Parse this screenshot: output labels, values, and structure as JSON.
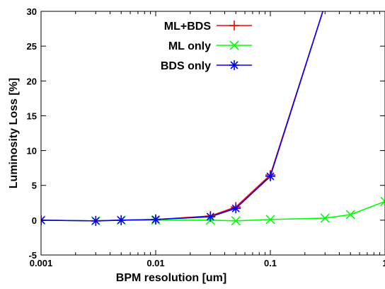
{
  "chart_data": {
    "type": "line",
    "xlabel": "BPM resolution [um]",
    "ylabel": "Luminosity Loss [%]",
    "xscale": "log",
    "xlim": [
      0.001,
      1
    ],
    "ylim": [
      -5,
      30
    ],
    "xticks": [
      {
        "value": 0.001,
        "label": "0.001"
      },
      {
        "value": 0.01,
        "label": "0.01"
      },
      {
        "value": 0.1,
        "label": "0.1"
      },
      {
        "value": 1,
        "label": "1"
      }
    ],
    "yticks": [
      {
        "value": -5,
        "label": "-5"
      },
      {
        "value": 0,
        "label": "0"
      },
      {
        "value": 5,
        "label": "5"
      },
      {
        "value": 10,
        "label": "10"
      },
      {
        "value": 15,
        "label": "15"
      },
      {
        "value": 20,
        "label": "20"
      },
      {
        "value": 25,
        "label": "25"
      },
      {
        "value": 30,
        "label": "30"
      }
    ],
    "grid": false,
    "legend_position": "top-center",
    "series": [
      {
        "name": "ML+BDS",
        "color": "#ff0000",
        "marker": "plus",
        "x": [
          0.001,
          0.003,
          0.005,
          0.01,
          0.03,
          0.05,
          0.1,
          0.3
        ],
        "y": [
          0.0,
          -0.1,
          0.0,
          0.1,
          0.6,
          1.9,
          6.5,
          31.0
        ]
      },
      {
        "name": "ML only",
        "color": "#00ff00",
        "marker": "cross",
        "x": [
          0.001,
          0.003,
          0.005,
          0.01,
          0.03,
          0.05,
          0.1,
          0.3,
          0.5,
          1
        ],
        "y": [
          0.0,
          -0.1,
          0.0,
          0.0,
          0.0,
          -0.1,
          0.1,
          0.3,
          0.8,
          2.7
        ]
      },
      {
        "name": "BDS only",
        "color": "#0000ff",
        "marker": "star",
        "x": [
          0.001,
          0.003,
          0.005,
          0.01,
          0.03,
          0.05,
          0.1,
          0.3
        ],
        "y": [
          0.0,
          -0.1,
          0.0,
          0.1,
          0.5,
          1.7,
          6.3,
          31.0
        ]
      }
    ]
  }
}
